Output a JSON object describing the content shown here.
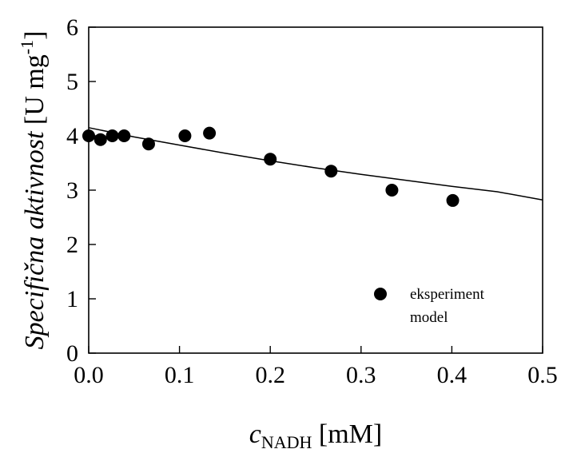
{
  "chart_data": {
    "type": "scatter",
    "title": "",
    "xlabel": {
      "var": "c",
      "sub": "NADH",
      "unit": " [mM]"
    },
    "ylabel": {
      "italic": "Specifična aktivnost",
      "unit_pre": " [U mg",
      "sup": "-1",
      "unit_post": "]"
    },
    "xlim": [
      0,
      0.5
    ],
    "ylim": [
      0,
      6
    ],
    "x_ticks": [
      0.0,
      0.1,
      0.2,
      0.3,
      0.4,
      0.5
    ],
    "x_tick_labels": [
      "0.0",
      "0.1",
      "0.2",
      "0.3",
      "0.4",
      "0.5"
    ],
    "y_ticks": [
      0,
      1,
      2,
      3,
      4,
      5,
      6
    ],
    "y_tick_labels": [
      "0",
      "1",
      "2",
      "3",
      "4",
      "5",
      "6"
    ],
    "grid": false,
    "legend_position": "bottom-right",
    "series": [
      {
        "name": "eksperiment",
        "kind": "scatter",
        "marker": "filled-circle",
        "color": "#000000",
        "x": [
          0.0,
          0.013,
          0.026,
          0.039,
          0.066,
          0.106,
          0.133,
          0.2,
          0.267,
          0.334,
          0.401
        ],
        "y": [
          4.0,
          3.93,
          4.0,
          4.0,
          3.85,
          4.0,
          4.05,
          3.57,
          3.35,
          3.0,
          2.81
        ]
      },
      {
        "name": "model",
        "kind": "line",
        "color": "#000000",
        "x": [
          0.0,
          0.05,
          0.1,
          0.15,
          0.2,
          0.25,
          0.3,
          0.35,
          0.4,
          0.45,
          0.5
        ],
        "y": [
          4.15,
          3.98,
          3.83,
          3.68,
          3.54,
          3.41,
          3.29,
          3.18,
          3.07,
          2.97,
          2.82
        ]
      }
    ]
  }
}
